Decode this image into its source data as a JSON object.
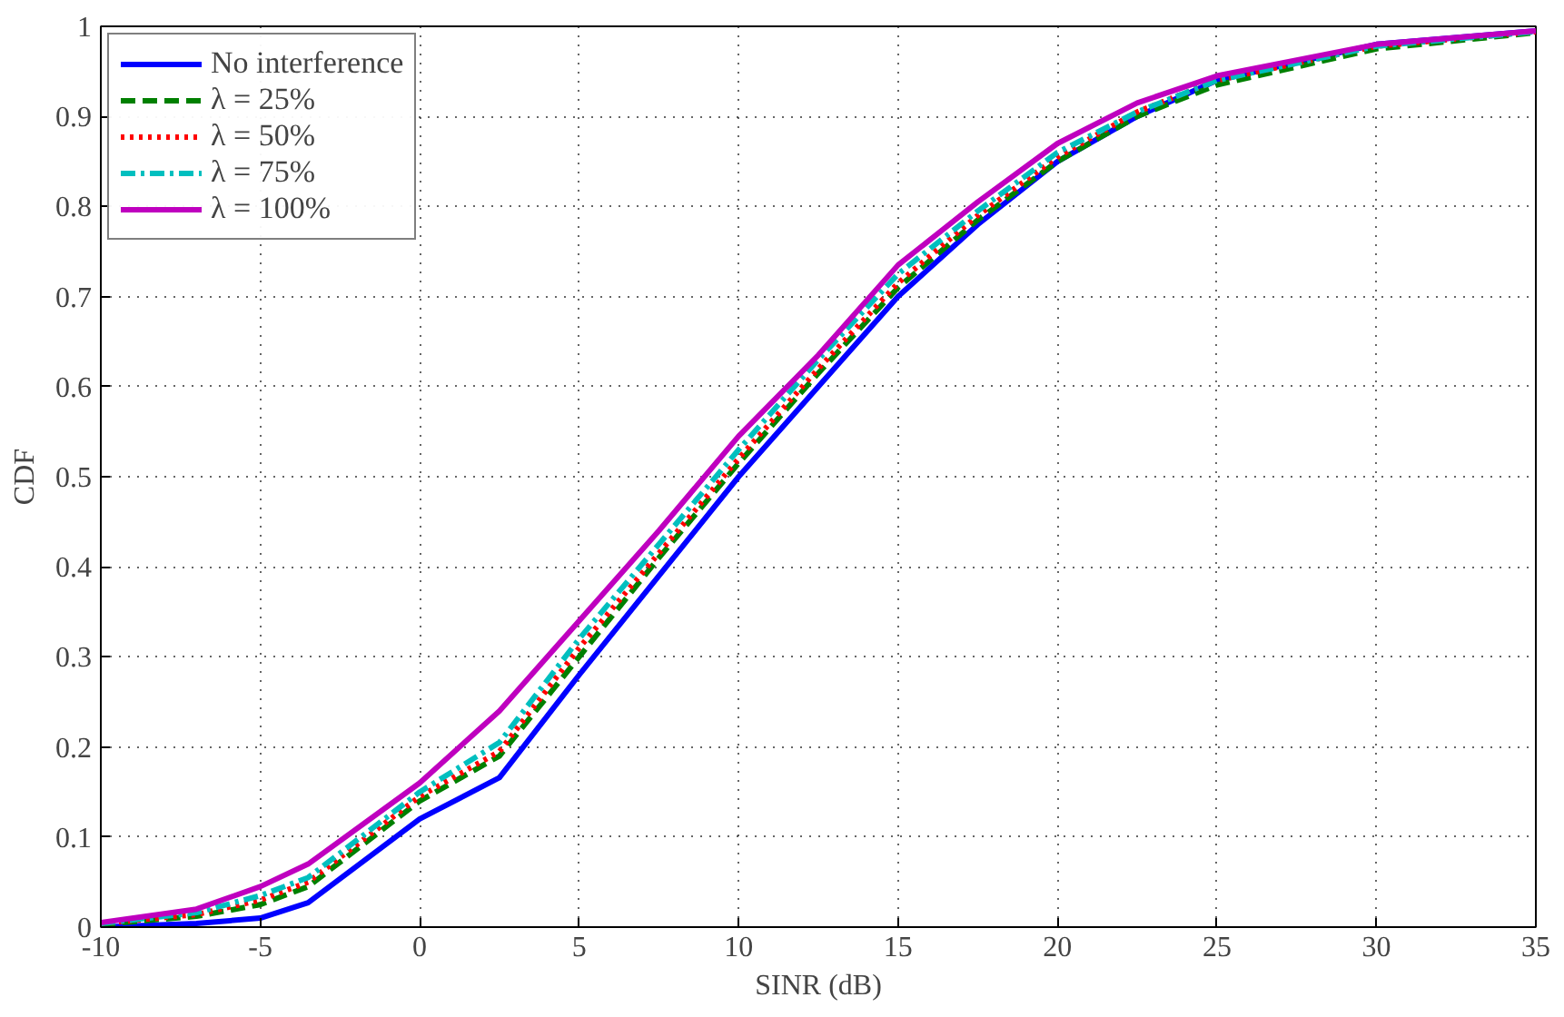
{
  "chart_data": {
    "type": "line",
    "xlabel": "SINR (dB)",
    "ylabel": "CDF",
    "x": [
      -10,
      -7,
      -5,
      -3.5,
      0,
      2.5,
      5,
      7.5,
      10,
      12.5,
      15,
      17.5,
      20,
      22.5,
      25,
      30,
      35
    ],
    "xlim": [
      -10,
      35
    ],
    "xticks": [
      -10,
      -5,
      0,
      5,
      10,
      15,
      20,
      25,
      30,
      35
    ],
    "ylim": [
      0,
      1
    ],
    "yticks": [
      0,
      0.1,
      0.2,
      0.3,
      0.4,
      0.5,
      0.6,
      0.7,
      0.8,
      0.9,
      1
    ],
    "grid": true,
    "legend": "top left",
    "series": [
      {
        "name": "No interference",
        "color": "#0000ff",
        "line_style": "solid",
        "values": [
          0,
          0.004,
          0.01,
          0.027,
          0.12,
          0.166,
          0.28,
          0.39,
          0.5,
          0.6,
          0.7,
          0.78,
          0.85,
          0.9,
          0.94,
          0.98,
          0.995
        ]
      },
      {
        "name": "λ = 25%",
        "color": "#008000",
        "line_style": "dashed",
        "values": [
          0.003,
          0.012,
          0.025,
          0.045,
          0.14,
          0.19,
          0.3,
          0.41,
          0.515,
          0.615,
          0.71,
          0.785,
          0.85,
          0.9,
          0.935,
          0.975,
          0.993
        ]
      },
      {
        "name": "λ = 50%",
        "color": "#ff0000",
        "line_style": "dotted",
        "values": [
          0.004,
          0.014,
          0.03,
          0.05,
          0.145,
          0.195,
          0.31,
          0.415,
          0.52,
          0.62,
          0.715,
          0.79,
          0.855,
          0.905,
          0.94,
          0.978,
          0.994
        ]
      },
      {
        "name": "λ = 75%",
        "color": "#00bfbf",
        "line_style": "dashdot",
        "values": [
          0.004,
          0.016,
          0.035,
          0.055,
          0.15,
          0.205,
          0.32,
          0.425,
          0.53,
          0.63,
          0.725,
          0.795,
          0.86,
          0.905,
          0.94,
          0.978,
          0.994
        ]
      },
      {
        "name": "λ = 100%",
        "color": "#bf00bf",
        "line_style": "solid",
        "values": [
          0.005,
          0.02,
          0.045,
          0.07,
          0.16,
          0.24,
          0.34,
          0.44,
          0.545,
          0.635,
          0.735,
          0.805,
          0.87,
          0.915,
          0.945,
          0.98,
          0.995
        ]
      }
    ]
  }
}
